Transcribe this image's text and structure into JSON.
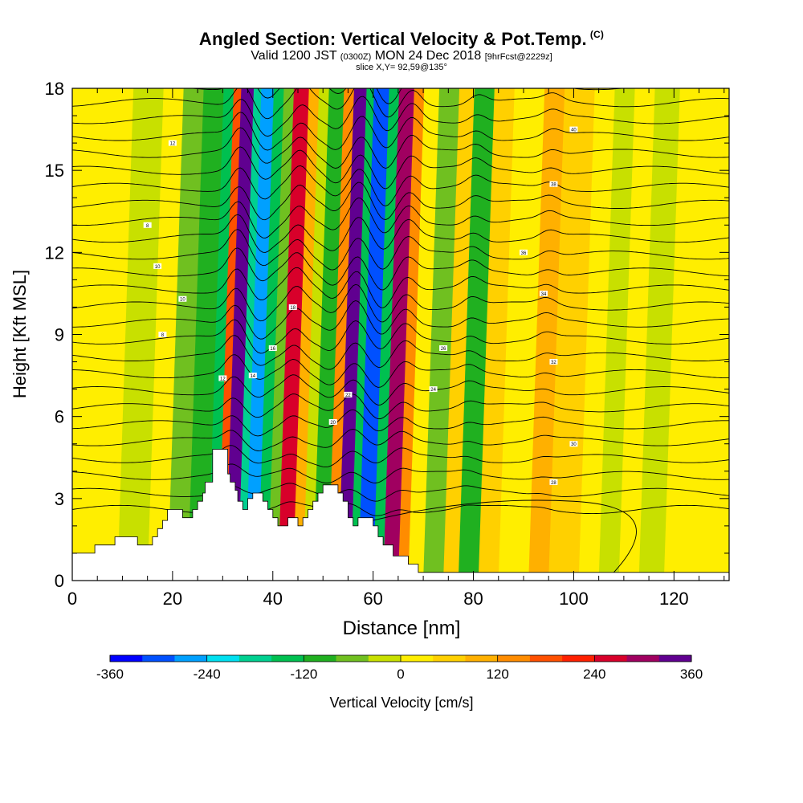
{
  "titles": {
    "main": "Angled Section: Vertical Velocity & Pot.Temp.",
    "main_suffix": "(C)",
    "valid_a": "Valid 1200 JST",
    "valid_b": "(0300Z)",
    "valid_c": "MON 24 Dec 2018",
    "valid_d": "[9hrFcst@2229z]",
    "slice": "slice X,Y= 92,59@135°"
  },
  "chart_data": {
    "type": "heatmap",
    "title": "Angled Section: Vertical Velocity & Pot.Temp. (C)",
    "xlabel": "Distance [nm]",
    "ylabel": "Height [Kft MSL]",
    "xlim": [
      0,
      131
    ],
    "ylim": [
      0,
      18
    ],
    "x_ticks": [
      0,
      20,
      40,
      60,
      80,
      100,
      120
    ],
    "y_ticks": [
      0,
      3,
      6,
      9,
      12,
      15,
      18
    ],
    "colorbar": {
      "label": "Vertical Velocity [cm/s]",
      "tick_labels": [
        "-360",
        "-240",
        "-120",
        "0",
        "120",
        "240",
        "360"
      ],
      "ticks": [
        -360,
        -240,
        -120,
        0,
        120,
        240,
        360
      ],
      "colors": [
        "#0000ff",
        "#0050ff",
        "#00a0ff",
        "#00e0f0",
        "#00d090",
        "#00c050",
        "#20b020",
        "#70c020",
        "#c8e000",
        "#ffee00",
        "#ffd000",
        "#ffb000",
        "#ff8c00",
        "#ff5000",
        "#ff2000",
        "#d8002a",
        "#a00060",
        "#600090"
      ]
    },
    "vertical_velocity_bands": [
      {
        "x": 0,
        "w": 3,
        "v": 20
      },
      {
        "x": 3,
        "w": 6,
        "v": 0
      },
      {
        "x": 9,
        "w": 6,
        "v": -40
      },
      {
        "x": 15,
        "w": 4,
        "v": 10
      },
      {
        "x": 19,
        "w": 4,
        "v": -60
      },
      {
        "x": 23,
        "w": 4,
        "v": -110
      },
      {
        "x": 27,
        "w": 2,
        "v": -160
      },
      {
        "x": 29,
        "w": 1.5,
        "v": 160
      },
      {
        "x": 30.5,
        "w": 2.5,
        "v": 320
      },
      {
        "x": 33,
        "w": 1.5,
        "v": -200
      },
      {
        "x": 34.5,
        "w": 2.5,
        "v": -280
      },
      {
        "x": 37,
        "w": 2,
        "v": -140
      },
      {
        "x": 39,
        "w": 2,
        "v": -60
      },
      {
        "x": 41,
        "w": 3,
        "v": 260
      },
      {
        "x": 44,
        "w": 2,
        "v": 100
      },
      {
        "x": 46,
        "w": 2,
        "v": -40
      },
      {
        "x": 48,
        "w": 3,
        "v": -100
      },
      {
        "x": 51,
        "w": 2,
        "v": 140
      },
      {
        "x": 53,
        "w": 2.5,
        "v": 320
      },
      {
        "x": 55.5,
        "w": 1.5,
        "v": -160
      },
      {
        "x": 57,
        "w": 3,
        "v": -320
      },
      {
        "x": 60,
        "w": 2,
        "v": -140
      },
      {
        "x": 62,
        "w": 3,
        "v": 280
      },
      {
        "x": 65,
        "w": 2,
        "v": 120
      },
      {
        "x": 67,
        "w": 3,
        "v": 20
      },
      {
        "x": 70,
        "w": 4,
        "v": -60
      },
      {
        "x": 74,
        "w": 3,
        "v": 40
      },
      {
        "x": 77,
        "w": 4,
        "v": -100
      },
      {
        "x": 81,
        "w": 4,
        "v": 60
      },
      {
        "x": 85,
        "w": 6,
        "v": 20
      },
      {
        "x": 91,
        "w": 4,
        "v": 100
      },
      {
        "x": 95,
        "w": 6,
        "v": 40
      },
      {
        "x": 101,
        "w": 4,
        "v": 0
      },
      {
        "x": 105,
        "w": 4,
        "v": -40
      },
      {
        "x": 109,
        "w": 4,
        "v": 20
      },
      {
        "x": 113,
        "w": 5,
        "v": -30
      },
      {
        "x": 118,
        "w": 4,
        "v": 30
      },
      {
        "x": 122,
        "w": 5,
        "v": 0
      },
      {
        "x": 127,
        "w": 4,
        "v": 20
      }
    ],
    "terrain": [
      [
        0,
        1.0
      ],
      [
        4.5,
        1.0
      ],
      [
        4.5,
        1.3
      ],
      [
        8.5,
        1.3
      ],
      [
        8.5,
        1.6
      ],
      [
        13,
        1.6
      ],
      [
        13,
        1.3
      ],
      [
        16,
        1.3
      ],
      [
        16,
        1.6
      ],
      [
        17,
        1.6
      ],
      [
        17,
        1.9
      ],
      [
        18,
        1.9
      ],
      [
        18,
        2.2
      ],
      [
        19,
        2.2
      ],
      [
        19,
        2.6
      ],
      [
        22,
        2.6
      ],
      [
        22,
        2.3
      ],
      [
        24,
        2.3
      ],
      [
        24,
        2.6
      ],
      [
        25,
        2.6
      ],
      [
        25,
        2.9
      ],
      [
        26,
        2.9
      ],
      [
        26,
        3.2
      ],
      [
        26.5,
        3.2
      ],
      [
        26.5,
        3.6
      ],
      [
        28,
        3.6
      ],
      [
        28,
        4.8
      ],
      [
        31,
        4.8
      ],
      [
        31,
        3.9
      ],
      [
        31.5,
        3.9
      ],
      [
        31.5,
        3.6
      ],
      [
        32.5,
        3.6
      ],
      [
        32.5,
        3.3
      ],
      [
        33,
        3.3
      ],
      [
        33,
        2.9
      ],
      [
        34,
        2.9
      ],
      [
        34,
        2.6
      ],
      [
        35,
        2.6
      ],
      [
        35,
        3.0
      ],
      [
        36,
        3.0
      ],
      [
        36,
        3.2
      ],
      [
        38,
        3.2
      ],
      [
        38,
        2.9
      ],
      [
        39,
        2.9
      ],
      [
        39,
        2.6
      ],
      [
        40,
        2.6
      ],
      [
        40,
        2.3
      ],
      [
        41,
        2.3
      ],
      [
        41,
        2.0
      ],
      [
        43,
        2.0
      ],
      [
        43,
        2.3
      ],
      [
        45,
        2.3
      ],
      [
        45,
        2.0
      ],
      [
        46,
        2.0
      ],
      [
        46,
        2.3
      ],
      [
        47,
        2.3
      ],
      [
        47,
        2.6
      ],
      [
        48,
        2.6
      ],
      [
        48,
        2.9
      ],
      [
        49,
        2.9
      ],
      [
        49,
        3.2
      ],
      [
        50,
        3.2
      ],
      [
        50,
        3.5
      ],
      [
        53,
        3.5
      ],
      [
        53,
        3.2
      ],
      [
        54,
        3.2
      ],
      [
        54,
        2.9
      ],
      [
        55,
        2.9
      ],
      [
        55,
        2.3
      ],
      [
        56,
        2.3
      ],
      [
        56,
        2.0
      ],
      [
        57,
        2.0
      ],
      [
        57,
        2.3
      ],
      [
        60,
        2.3
      ],
      [
        60,
        2.0
      ],
      [
        61,
        2.0
      ],
      [
        61,
        1.6
      ],
      [
        62,
        1.6
      ],
      [
        62,
        1.3
      ],
      [
        64,
        1.3
      ],
      [
        64,
        0.9
      ],
      [
        67,
        0.9
      ],
      [
        67,
        0.6
      ],
      [
        69,
        0.6
      ],
      [
        69,
        0.3
      ],
      [
        71,
        0.3
      ],
      [
        71,
        0.3
      ],
      [
        131,
        0.3
      ]
    ],
    "potential_temperature_contours": {
      "units": "C",
      "label_values": [
        "8",
        "10",
        "12",
        "14",
        "16",
        "18",
        "20",
        "22",
        "24",
        "26",
        "28",
        "30",
        "32",
        "34",
        "36",
        "38",
        "40"
      ]
    }
  },
  "colorbar_label": "Vertical Velocity [cm/s]"
}
